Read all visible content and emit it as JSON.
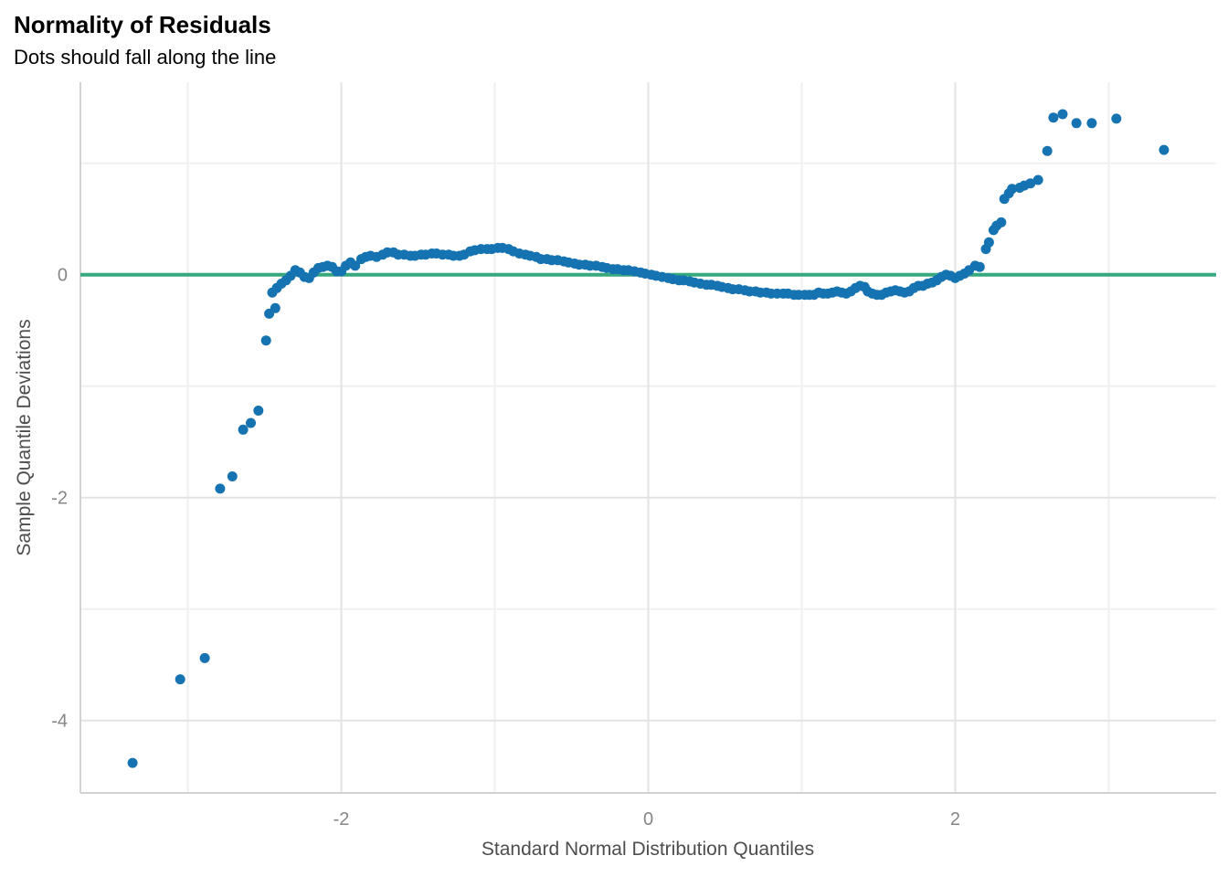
{
  "title": "Normality of Residuals",
  "subtitle": "Dots should fall along the line",
  "x_axis": {
    "label": "Standard Normal Distribution Quantiles",
    "tick_labels": [
      "-2",
      "0",
      "2"
    ],
    "major_breaks": [
      -2,
      0,
      2
    ],
    "minor_breaks": [
      -3,
      -1,
      1,
      3
    ],
    "range": [
      -3.7,
      3.7
    ]
  },
  "y_axis": {
    "label": "Sample Quantile Deviations",
    "tick_labels": [
      "0",
      "-2",
      "-4"
    ],
    "major_breaks": [
      0,
      -2,
      -4
    ],
    "minor_breaks": [
      1,
      -1,
      -3
    ],
    "range": [
      -4.65,
      1.727
    ]
  },
  "colors": {
    "point": "#1673b1",
    "reference_line": "#38a87e",
    "grid_major": "#e3e3e3",
    "grid_minor": "#f0f0f0",
    "axis_line": "#d2d2d2",
    "tick_text": "#868686",
    "axis_title_text": "#4d4d4d",
    "title_text": "#000000"
  },
  "chart_data": {
    "type": "scatter",
    "title": "Normality of Residuals",
    "subtitle": "Dots should fall along the line",
    "xlabel": "Standard Normal Distribution Quantiles",
    "ylabel": "Sample Quantile Deviations",
    "xlim": [
      -3.7,
      3.7
    ],
    "ylim": [
      -4.65,
      1.727
    ],
    "grid": true,
    "legend": false,
    "reference_line_y": 0,
    "point_radius_px": 5.5,
    "series": [
      {
        "name": "sample-quantile-deviations",
        "points": [
          [
            -3.36,
            -4.38
          ],
          [
            -3.05,
            -3.63
          ],
          [
            -2.89,
            -3.44
          ],
          [
            -2.79,
            -1.92
          ],
          [
            -2.71,
            -1.81
          ],
          [
            -2.64,
            -1.39
          ],
          [
            -2.59,
            -1.33
          ],
          [
            -2.54,
            -1.22
          ],
          [
            -2.49,
            -0.59
          ],
          [
            -2.47,
            -0.35
          ],
          [
            -2.43,
            -0.3
          ],
          [
            -2.45,
            -0.16
          ],
          [
            -2.42,
            -0.12
          ],
          [
            -2.39,
            -0.08
          ],
          [
            -2.36,
            -0.05
          ],
          [
            -2.33,
            -0.01
          ],
          [
            -2.3,
            0.04
          ],
          [
            -2.27,
            0.02
          ],
          [
            -2.24,
            -0.02
          ],
          [
            -2.21,
            -0.03
          ],
          [
            -2.18,
            0.02
          ],
          [
            -2.15,
            0.06
          ],
          [
            -2.12,
            0.07
          ],
          [
            -2.09,
            0.08
          ],
          [
            -2.06,
            0.07
          ],
          [
            -2.03,
            0.03
          ],
          [
            -2.0,
            0.03
          ],
          [
            -1.97,
            0.08
          ],
          [
            -1.94,
            0.11
          ],
          [
            -1.91,
            0.08
          ],
          [
            -1.87,
            0.14
          ],
          [
            -1.84,
            0.16
          ],
          [
            -1.81,
            0.17
          ],
          [
            -1.77,
            0.16
          ],
          [
            -1.73,
            0.18
          ],
          [
            -1.7,
            0.2
          ],
          [
            -1.66,
            0.2
          ],
          [
            -1.63,
            0.18
          ],
          [
            -1.59,
            0.18
          ],
          [
            -1.55,
            0.17
          ],
          [
            -1.52,
            0.17
          ],
          [
            -1.48,
            0.18
          ],
          [
            -1.45,
            0.18
          ],
          [
            -1.41,
            0.19
          ],
          [
            -1.38,
            0.19
          ],
          [
            -1.34,
            0.18
          ],
          [
            -1.3,
            0.18
          ],
          [
            -1.27,
            0.17
          ],
          [
            -1.23,
            0.17
          ],
          [
            -1.2,
            0.18
          ],
          [
            -1.16,
            0.21
          ],
          [
            -1.13,
            0.22
          ],
          [
            -1.09,
            0.23
          ],
          [
            -1.05,
            0.23
          ],
          [
            -1.02,
            0.23
          ],
          [
            -0.98,
            0.24
          ],
          [
            -0.95,
            0.24
          ],
          [
            -0.91,
            0.23
          ],
          [
            -0.88,
            0.21
          ],
          [
            -0.84,
            0.19
          ],
          [
            -0.8,
            0.18
          ],
          [
            -0.77,
            0.17
          ],
          [
            -0.73,
            0.16
          ],
          [
            -0.7,
            0.14
          ],
          [
            -0.66,
            0.14
          ],
          [
            -0.63,
            0.13
          ],
          [
            -0.59,
            0.13
          ],
          [
            -0.55,
            0.12
          ],
          [
            -0.52,
            0.11
          ],
          [
            -0.48,
            0.1
          ],
          [
            -0.45,
            0.09
          ],
          [
            -0.41,
            0.09
          ],
          [
            -0.38,
            0.08
          ],
          [
            -0.34,
            0.08
          ],
          [
            -0.3,
            0.07
          ],
          [
            -0.27,
            0.06
          ],
          [
            -0.23,
            0.05
          ],
          [
            -0.2,
            0.05
          ],
          [
            -0.16,
            0.04
          ],
          [
            -0.13,
            0.04
          ],
          [
            -0.09,
            0.03
          ],
          [
            -0.05,
            0.02
          ],
          [
            -0.02,
            0.01
          ],
          [
            0.02,
            0.0
          ],
          [
            0.05,
            -0.01
          ],
          [
            0.09,
            -0.02
          ],
          [
            0.13,
            -0.03
          ],
          [
            0.16,
            -0.04
          ],
          [
            0.2,
            -0.05
          ],
          [
            0.23,
            -0.05
          ],
          [
            0.27,
            -0.06
          ],
          [
            0.3,
            -0.07
          ],
          [
            0.34,
            -0.08
          ],
          [
            0.38,
            -0.09
          ],
          [
            0.41,
            -0.09
          ],
          [
            0.45,
            -0.1
          ],
          [
            0.48,
            -0.11
          ],
          [
            0.52,
            -0.12
          ],
          [
            0.55,
            -0.13
          ],
          [
            0.59,
            -0.13
          ],
          [
            0.63,
            -0.14
          ],
          [
            0.66,
            -0.15
          ],
          [
            0.7,
            -0.15
          ],
          [
            0.73,
            -0.16
          ],
          [
            0.77,
            -0.16
          ],
          [
            0.8,
            -0.17
          ],
          [
            0.84,
            -0.17
          ],
          [
            0.88,
            -0.17
          ],
          [
            0.91,
            -0.17
          ],
          [
            0.95,
            -0.18
          ],
          [
            0.98,
            -0.18
          ],
          [
            1.02,
            -0.18
          ],
          [
            1.05,
            -0.18
          ],
          [
            1.08,
            -0.18
          ],
          [
            1.11,
            -0.16
          ],
          [
            1.14,
            -0.17
          ],
          [
            1.17,
            -0.17
          ],
          [
            1.2,
            -0.16
          ],
          [
            1.23,
            -0.15
          ],
          [
            1.26,
            -0.16
          ],
          [
            1.29,
            -0.17
          ],
          [
            1.32,
            -0.15
          ],
          [
            1.35,
            -0.12
          ],
          [
            1.38,
            -0.1
          ],
          [
            1.41,
            -0.11
          ],
          [
            1.43,
            -0.15
          ],
          [
            1.46,
            -0.17
          ],
          [
            1.49,
            -0.18
          ],
          [
            1.52,
            -0.18
          ],
          [
            1.55,
            -0.16
          ],
          [
            1.58,
            -0.15
          ],
          [
            1.61,
            -0.14
          ],
          [
            1.64,
            -0.15
          ],
          [
            1.67,
            -0.16
          ],
          [
            1.7,
            -0.15
          ],
          [
            1.73,
            -0.12
          ],
          [
            1.76,
            -0.1
          ],
          [
            1.79,
            -0.1
          ],
          [
            1.82,
            -0.08
          ],
          [
            1.85,
            -0.07
          ],
          [
            1.88,
            -0.05
          ],
          [
            1.91,
            -0.02
          ],
          [
            1.94,
            0.0
          ],
          [
            1.97,
            -0.01
          ],
          [
            2.0,
            -0.03
          ],
          [
            2.03,
            -0.01
          ],
          [
            2.06,
            0.01
          ],
          [
            2.09,
            0.04
          ],
          [
            2.13,
            0.08
          ],
          [
            2.16,
            0.07
          ],
          [
            2.2,
            0.23
          ],
          [
            2.22,
            0.29
          ],
          [
            2.25,
            0.4
          ],
          [
            2.27,
            0.44
          ],
          [
            2.3,
            0.47
          ],
          [
            2.32,
            0.68
          ],
          [
            2.35,
            0.73
          ],
          [
            2.37,
            0.77
          ],
          [
            2.42,
            0.78
          ],
          [
            2.45,
            0.8
          ],
          [
            2.49,
            0.82
          ],
          [
            2.54,
            0.85
          ],
          [
            2.6,
            1.11
          ],
          [
            2.64,
            1.41
          ],
          [
            2.7,
            1.44
          ],
          [
            2.79,
            1.36
          ],
          [
            2.89,
            1.36
          ],
          [
            3.05,
            1.4
          ],
          [
            3.36,
            1.12
          ]
        ]
      }
    ]
  }
}
